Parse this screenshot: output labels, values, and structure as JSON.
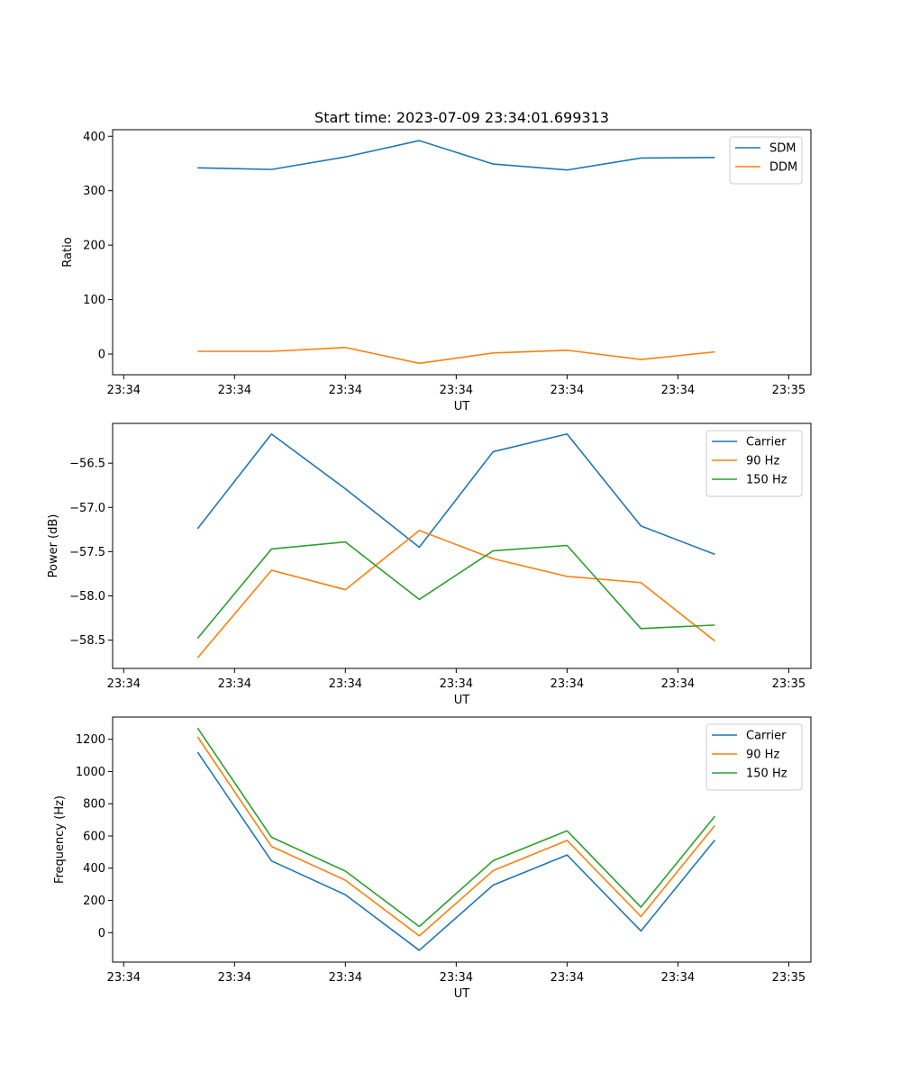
{
  "figure": {
    "title": "Start time: 2023-07-09 23:34:01.699313"
  },
  "chart_data": [
    {
      "type": "line",
      "name": "ratio-chart",
      "xlabel": "UT",
      "ylabel": "Ratio",
      "x": [
        0.8,
        1.6,
        2.4,
        3.2,
        4.0,
        4.8,
        5.6,
        6.4
      ],
      "xlim": [
        -0.12,
        7.44
      ],
      "xticks": [
        0,
        1.2,
        2.4,
        3.6,
        4.8,
        6.0,
        7.2
      ],
      "xtick_labels": [
        "23:34",
        "23:34",
        "23:34",
        "23:34",
        "23:34",
        "23:34",
        "23:35"
      ],
      "ylim": [
        -38,
        412
      ],
      "yticks": [
        0,
        100,
        200,
        300,
        400
      ],
      "ytick_labels": [
        "0",
        "100",
        "200",
        "300",
        "400"
      ],
      "legend_position": "top-right",
      "series": [
        {
          "name": "SDM",
          "color": "#1f77b4",
          "values": [
            342,
            339,
            362,
            392,
            349,
            338,
            360,
            361
          ]
        },
        {
          "name": "DDM",
          "color": "#ff7f0e",
          "values": [
            5,
            5,
            12,
            -17,
            2,
            7,
            -10,
            4
          ]
        }
      ]
    },
    {
      "type": "line",
      "name": "power-chart",
      "xlabel": "UT",
      "ylabel": "Power (dB)",
      "x": [
        0.8,
        1.6,
        2.4,
        3.2,
        4.0,
        4.8,
        5.6,
        6.4
      ],
      "xlim": [
        -0.12,
        7.44
      ],
      "xticks": [
        0,
        1.2,
        2.4,
        3.6,
        4.8,
        6.0,
        7.2
      ],
      "xtick_labels": [
        "23:34",
        "23:34",
        "23:34",
        "23:34",
        "23:34",
        "23:34",
        "23:35"
      ],
      "ylim": [
        -58.82,
        -56.05
      ],
      "yticks": [
        -58.5,
        -58.0,
        -57.5,
        -57.0,
        -56.5
      ],
      "ytick_labels": [
        "−58.5",
        "−58.0",
        "−57.5",
        "−57.0",
        "−56.5"
      ],
      "legend_position": "top-right",
      "series": [
        {
          "name": "Carrier",
          "color": "#1f77b4",
          "values": [
            -57.24,
            -56.17,
            -56.79,
            -57.45,
            -56.37,
            -56.17,
            -57.21,
            -57.53
          ]
        },
        {
          "name": "90 Hz",
          "color": "#ff7f0e",
          "values": [
            -58.7,
            -57.71,
            -57.93,
            -57.26,
            -57.58,
            -57.78,
            -57.85,
            -58.51
          ]
        },
        {
          "name": "150 Hz",
          "color": "#2ca02c",
          "values": [
            -58.48,
            -57.47,
            -57.39,
            -58.04,
            -57.49,
            -57.43,
            -58.37,
            -58.33
          ]
        }
      ]
    },
    {
      "type": "line",
      "name": "frequency-chart",
      "xlabel": "UT",
      "ylabel": "Frequency (Hz)",
      "x": [
        0.8,
        1.6,
        2.4,
        3.2,
        4.0,
        4.8,
        5.6,
        6.4
      ],
      "xlim": [
        -0.12,
        7.44
      ],
      "xticks": [
        0,
        1.2,
        2.4,
        3.6,
        4.8,
        6.0,
        7.2
      ],
      "xtick_labels": [
        "23:34",
        "23:34",
        "23:34",
        "23:34",
        "23:34",
        "23:34",
        "23:35"
      ],
      "ylim": [
        -183,
        1338
      ],
      "yticks": [
        0,
        200,
        400,
        600,
        800,
        1000,
        1200
      ],
      "ytick_labels": [
        "0",
        "200",
        "400",
        "600",
        "800",
        "1000",
        "1200"
      ],
      "legend_position": "top-right",
      "series": [
        {
          "name": "Carrier",
          "color": "#1f77b4",
          "values": [
            1120,
            445,
            235,
            -110,
            295,
            482,
            10,
            575
          ]
        },
        {
          "name": "90 Hz",
          "color": "#ff7f0e",
          "values": [
            1215,
            535,
            325,
            -20,
            385,
            572,
            100,
            665
          ]
        },
        {
          "name": "150 Hz",
          "color": "#2ca02c",
          "values": [
            1270,
            592,
            382,
            38,
            447,
            632,
            158,
            722
          ]
        }
      ]
    }
  ]
}
